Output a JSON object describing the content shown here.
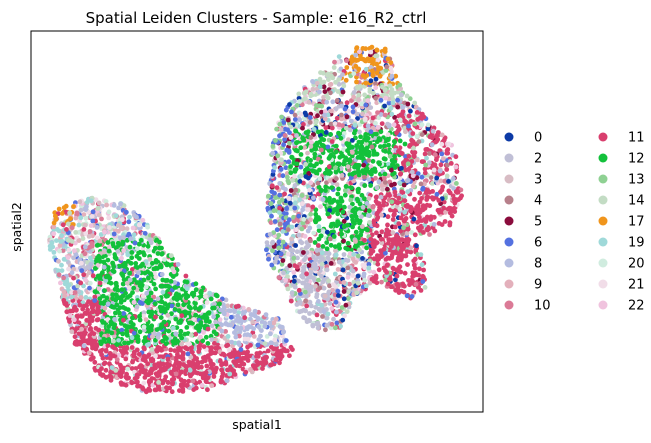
{
  "chart_data": {
    "type": "scatter",
    "title": "Spatial Leiden Clusters - Sample: e16_R2_ctrl",
    "xlabel": "spatial1",
    "ylabel": "spatial2",
    "ticks": "none",
    "grid": false,
    "legend_position": "right, outside axes, two columns",
    "clusters": [
      {
        "name": "0",
        "color": "#0c3aa6"
      },
      {
        "name": "2",
        "color": "#c0bfd6"
      },
      {
        "name": "3",
        "color": "#d8bcc4"
      },
      {
        "name": "4",
        "color": "#b77f8a"
      },
      {
        "name": "5",
        "color": "#8a0c3c"
      },
      {
        "name": "6",
        "color": "#5471e0"
      },
      {
        "name": "8",
        "color": "#b4bce0"
      },
      {
        "name": "9",
        "color": "#e3b0bb"
      },
      {
        "name": "10",
        "color": "#db7a96"
      },
      {
        "name": "11",
        "color": "#d93f6e"
      },
      {
        "name": "12",
        "color": "#13c13b"
      },
      {
        "name": "13",
        "color": "#8fd193"
      },
      {
        "name": "14",
        "color": "#c3dcc4"
      },
      {
        "name": "17",
        "color": "#f0951c"
      },
      {
        "name": "19",
        "color": "#9fd9d9"
      },
      {
        "name": "20",
        "color": "#d0ecdf"
      },
      {
        "name": "21",
        "color": "#f1dde8"
      },
      {
        "name": "22",
        "color": "#f0c3de"
      }
    ]
  }
}
